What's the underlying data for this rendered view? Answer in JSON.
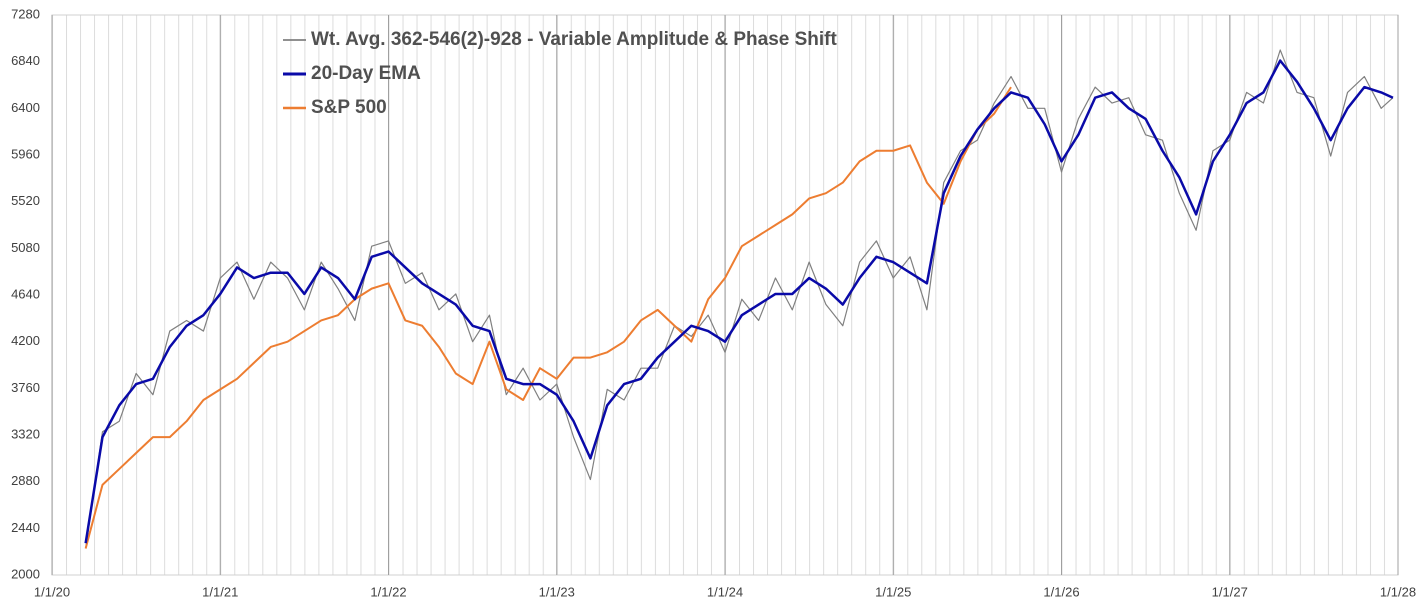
{
  "chart_data": {
    "type": "line",
    "x": [
      2020.2,
      2020.3,
      2020.4,
      2020.5,
      2020.6,
      2020.7,
      2020.8,
      2020.9,
      2021.0,
      2021.1,
      2021.2,
      2021.3,
      2021.4,
      2021.5,
      2021.6,
      2021.7,
      2021.8,
      2021.9,
      2022.0,
      2022.1,
      2022.2,
      2022.3,
      2022.4,
      2022.5,
      2022.6,
      2022.7,
      2022.8,
      2022.9,
      2023.0,
      2023.1,
      2023.2,
      2023.3,
      2023.4,
      2023.5,
      2023.6,
      2023.7,
      2023.8,
      2023.9,
      2024.0,
      2024.1,
      2024.2,
      2024.3,
      2024.4,
      2024.5,
      2024.6,
      2024.7,
      2024.8,
      2024.9,
      2025.0,
      2025.1,
      2025.2,
      2025.3,
      2025.4,
      2025.5,
      2025.6,
      2025.7,
      2025.8,
      2025.9,
      2026.0,
      2026.1,
      2026.2,
      2026.3,
      2026.4,
      2026.5,
      2026.6,
      2026.7,
      2026.8,
      2026.9,
      2027.0,
      2027.1,
      2027.2,
      2027.3,
      2027.4,
      2027.5,
      2027.6,
      2027.7,
      2027.8,
      2027.9,
      2027.97
    ],
    "series": [
      {
        "name": "Wt. Avg. 362-546(2)-928 - Variable Amplitude & Phase Shift",
        "color": "#808080",
        "width": 1.2,
        "values": [
          2250,
          3350,
          3450,
          3900,
          3700,
          4300,
          4400,
          4300,
          4800,
          4950,
          4600,
          4950,
          4800,
          4500,
          4950,
          4700,
          4400,
          5100,
          5150,
          4750,
          4850,
          4500,
          4650,
          4200,
          4450,
          3700,
          3950,
          3650,
          3800,
          3300,
          2900,
          3750,
          3650,
          3950,
          3950,
          4350,
          4250,
          4450,
          4100,
          4600,
          4400,
          4800,
          4500,
          4950,
          4550,
          4350,
          4950,
          5150,
          4800,
          5000,
          4500,
          5700,
          6000,
          6100,
          6450,
          6700,
          6400,
          6400,
          5800,
          6300,
          6600,
          6450,
          6500,
          6150,
          6100,
          5600,
          5250,
          6000,
          6100,
          6550,
          6450,
          6950,
          6550,
          6500,
          5950,
          6550,
          6700,
          6400,
          6500
        ]
      },
      {
        "name": "20-Day EMA",
        "color": "#0a0aa8",
        "width": 2.5,
        "values": [
          2300,
          3300,
          3600,
          3800,
          3850,
          4150,
          4350,
          4450,
          4650,
          4900,
          4800,
          4850,
          4850,
          4650,
          4900,
          4800,
          4600,
          5000,
          5050,
          4900,
          4750,
          4650,
          4550,
          4350,
          4300,
          3850,
          3800,
          3800,
          3700,
          3450,
          3100,
          3600,
          3800,
          3850,
          4050,
          4200,
          4350,
          4300,
          4200,
          4450,
          4550,
          4650,
          4650,
          4800,
          4700,
          4550,
          4800,
          5000,
          4950,
          4850,
          4750,
          5600,
          5950,
          6200,
          6400,
          6550,
          6500,
          6250,
          5900,
          6150,
          6500,
          6550,
          6400,
          6300,
          6000,
          5750,
          5400,
          5900,
          6150,
          6450,
          6550,
          6850,
          6650,
          6400,
          6100,
          6400,
          6600,
          6550,
          6500
        ]
      },
      {
        "name": "S&P 500",
        "color": "#ed7d31",
        "width": 2,
        "values": [
          2250,
          2850,
          3000,
          3150,
          3300,
          3300,
          3450,
          3650,
          3750,
          3850,
          4000,
          4150,
          4200,
          4300,
          4400,
          4450,
          4600,
          4700,
          4750,
          4400,
          4350,
          4150,
          3900,
          3800,
          4200,
          3750,
          3650,
          3950,
          3850,
          4050,
          4050,
          4100,
          4200,
          4400,
          4500,
          4350,
          4200,
          4600,
          4800,
          5100,
          5200,
          5300,
          5400,
          5550,
          5600,
          5700,
          5900,
          6000,
          6000,
          6050,
          5700,
          5500,
          5900,
          6200,
          6350,
          6600,
          null,
          null,
          null,
          null,
          null,
          null,
          null,
          null,
          null,
          null,
          null,
          null,
          null,
          null,
          null,
          null,
          null,
          null,
          null,
          null,
          null,
          null,
          null
        ]
      }
    ],
    "xlim": [
      2020,
      2028
    ],
    "xticks": [
      {
        "value": 2020,
        "label": "1/1/20"
      },
      {
        "value": 2021,
        "label": "1/1/21"
      },
      {
        "value": 2022,
        "label": "1/1/22"
      },
      {
        "value": 2023,
        "label": "1/1/23"
      },
      {
        "value": 2024,
        "label": "1/1/24"
      },
      {
        "value": 2025,
        "label": "1/1/25"
      },
      {
        "value": 2026,
        "label": "1/1/26"
      },
      {
        "value": 2027,
        "label": "1/1/27"
      },
      {
        "value": 2028,
        "label": "1/1/28"
      }
    ],
    "ylim": [
      2000,
      7280
    ],
    "yticks": [
      2000,
      2440,
      2880,
      3320,
      3760,
      4200,
      4640,
      5080,
      5520,
      5960,
      6400,
      6840,
      7280
    ],
    "grid": "x",
    "legend": "top"
  }
}
